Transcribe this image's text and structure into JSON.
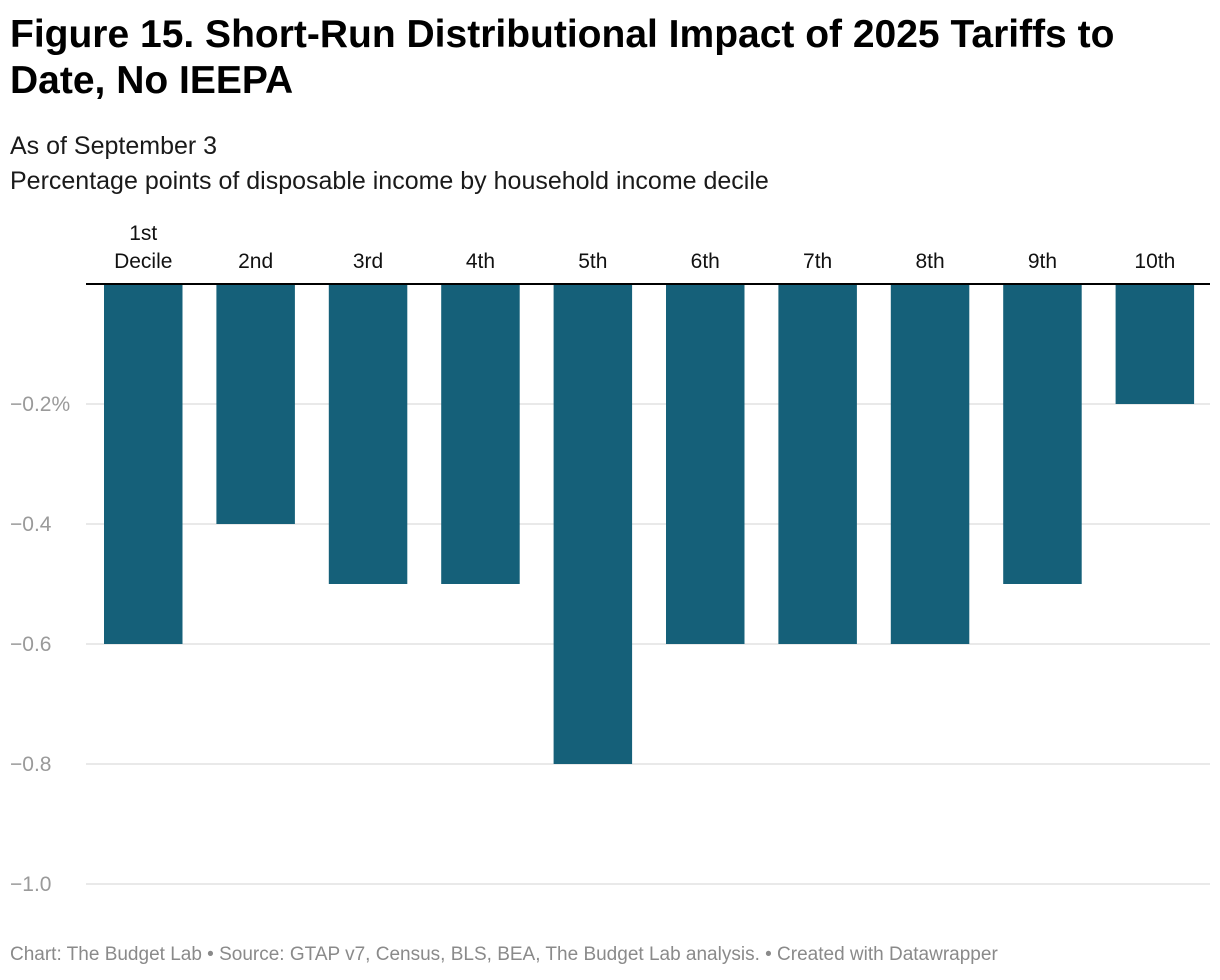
{
  "title": "Figure 15. Short-Run Distributional Impact of 2025 Tariffs to Date, No IEEPA",
  "subtitle_line1": "As of September 3",
  "subtitle_line2": "Percentage points of disposable income by household income decile",
  "footer": "Chart: The Budget Lab • Source: GTAP v7, Census, BLS, BEA, The Budget Lab analysis. • Created with Datawrapper",
  "colors": {
    "bar": "#156079",
    "grid": "#e2e2e2",
    "baseline": "#000000"
  },
  "chart_data": {
    "type": "bar",
    "categories": [
      [
        "1st",
        "Decile"
      ],
      [
        "2nd"
      ],
      [
        "3rd"
      ],
      [
        "4th"
      ],
      [
        "5th"
      ],
      [
        "6th"
      ],
      [
        "7th"
      ],
      [
        "8th"
      ],
      [
        "9th"
      ],
      [
        "10th"
      ]
    ],
    "values": [
      -0.6,
      -0.4,
      -0.5,
      -0.5,
      -0.8,
      -0.6,
      -0.6,
      -0.6,
      -0.5,
      -0.2
    ],
    "ylim": [
      -1.0,
      0
    ],
    "yticks": [
      {
        "value": -0.2,
        "label": "−0.2%"
      },
      {
        "value": -0.4,
        "label": "−0.4"
      },
      {
        "value": -0.6,
        "label": "−0.6"
      },
      {
        "value": -0.8,
        "label": "−0.8"
      },
      {
        "value": -1.0,
        "label": "−1.0"
      }
    ],
    "grid": true,
    "category_axis_position": "top"
  }
}
